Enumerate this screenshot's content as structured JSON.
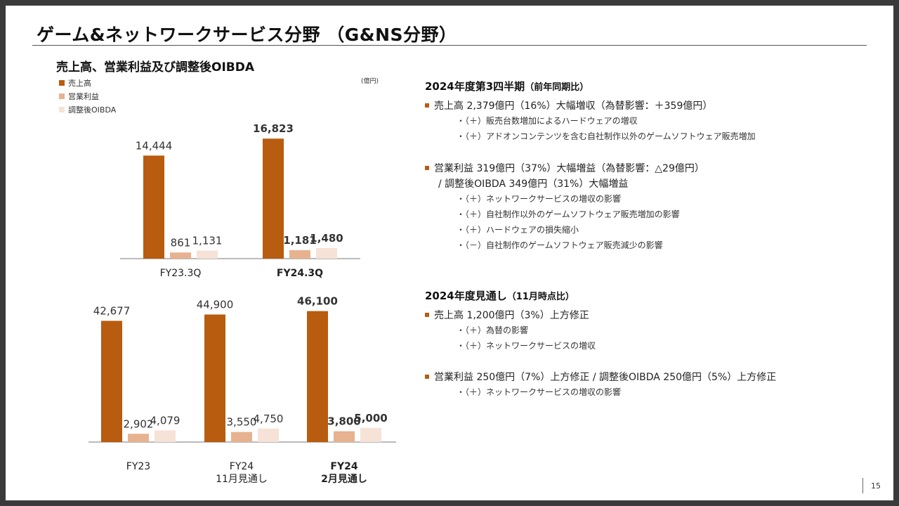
{
  "title": "ゲーム&ネットワークサービス分野 （G&NS分野）",
  "chart_section_title": "売上高、営業利益及び調整後OIBDA",
  "unit": "(億円)",
  "colors": {
    "sales": "#b85c0f",
    "op_income": "#e7b28f",
    "oibda": "#f6e2d6",
    "accent": "#b85c0f"
  },
  "legend": [
    "売上高",
    "営業利益",
    "調整後OIBDA"
  ],
  "chart_data": [
    {
      "type": "bar",
      "categories": [
        "FY23.3Q",
        "FY24.3Q"
      ],
      "series": [
        {
          "name": "売上高",
          "values": [
            14444,
            16823
          ]
        },
        {
          "name": "営業利益",
          "values": [
            861,
            1181
          ]
        },
        {
          "name": "調整後OIBDA",
          "values": [
            1131,
            1480
          ]
        }
      ],
      "value_labels": [
        [
          "14,444",
          "861",
          "1,131"
        ],
        [
          "16,823",
          "1,181",
          "1,480"
        ]
      ],
      "bold_categories": [
        1
      ],
      "ylim": [
        0,
        20000
      ],
      "grid": false
    },
    {
      "type": "bar",
      "categories": [
        "FY23",
        "FY24\n11月見通し",
        "FY24\n2月見通し"
      ],
      "series": [
        {
          "name": "売上高",
          "values": [
            42677,
            44900,
            46100
          ]
        },
        {
          "name": "営業利益",
          "values": [
            2902,
            3550,
            3800
          ]
        },
        {
          "name": "調整後OIBDA",
          "values": [
            4079,
            4750,
            5000
          ]
        }
      ],
      "value_labels": [
        [
          "42,677",
          "2,902",
          "4,079"
        ],
        [
          "44,900",
          "3,550",
          "4,750"
        ],
        [
          "46,100",
          "3,800",
          "5,000"
        ]
      ],
      "bold_categories": [
        2
      ],
      "ylim": [
        0,
        48000
      ],
      "grid": false
    }
  ],
  "q3": {
    "heading": "2024年度第3四半期",
    "heading_note": "（前年同期比）",
    "sales_line": "売上高 2,379億円（16%）大幅増収（為替影響：＋359億円）",
    "sales_subs": [
      "・（＋）販売台数増加によるハードウェアの増収",
      "・（＋）アドオンコンテンツを含む自社制作以外のゲームソフトウェア販売増加"
    ],
    "op_line": "営業利益 319億円（37%）大幅増益（為替影響：△29億円）",
    "oibda_line": "/ 調整後OIBDA 349億円（31%）大幅増益",
    "op_subs": [
      "・（＋）ネットワークサービスの増収の影響",
      "・（＋）自社制作以外のゲームソフトウェア販売増加の影響",
      "・（＋）ハードウェアの損失縮小",
      "・（－）自社制作のゲームソフトウェア販売減少の影響"
    ]
  },
  "forecast": {
    "heading": "2024年度見通し",
    "heading_note": "（11月時点比）",
    "sales_line": "売上高 1,200億円（3%）上方修正",
    "sales_subs": [
      "・（＋）為替の影響",
      "・（＋）ネットワークサービスの増収"
    ],
    "op_line": "営業利益 250億円（7%）上方修正 / 調整後OIBDA 250億円（5%）上方修正",
    "op_subs": [
      "・（＋）ネットワークサービスの増収の影響"
    ]
  },
  "page_number": "15"
}
